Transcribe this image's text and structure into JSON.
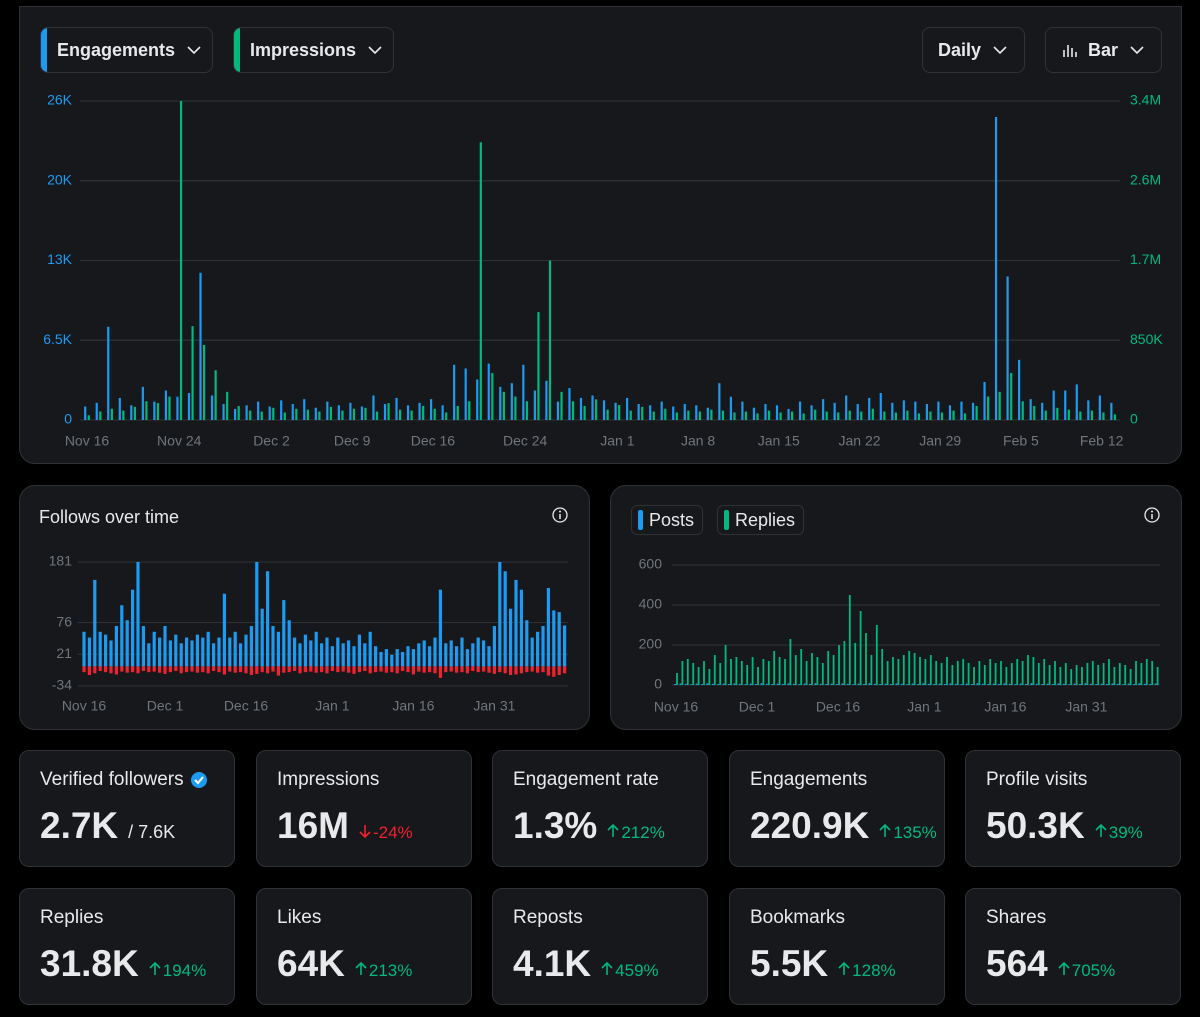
{
  "controls": {
    "interval": "Daily",
    "view": "Bar"
  },
  "chart_data": [
    {
      "type": "bar",
      "categories": [
        "Nov 16",
        null,
        null,
        null,
        null,
        null,
        null,
        null,
        "Nov 24",
        null,
        null,
        null,
        null,
        null,
        null,
        null,
        "Dec 2",
        null,
        null,
        null,
        null,
        null,
        null,
        "Dec 9",
        null,
        null,
        null,
        null,
        null,
        null,
        "Dec 16",
        null,
        null,
        null,
        null,
        null,
        null,
        null,
        "Dec 24",
        null,
        null,
        null,
        null,
        null,
        null,
        null,
        "Jan 1",
        null,
        null,
        null,
        null,
        null,
        null,
        "Jan 8",
        null,
        null,
        null,
        null,
        null,
        null,
        "Jan 15",
        null,
        null,
        null,
        null,
        null,
        null,
        "Jan 22",
        null,
        null,
        null,
        null,
        null,
        null,
        "Jan 29",
        null,
        null,
        null,
        null,
        null,
        null,
        "Feb 5",
        null,
        null,
        null,
        null,
        null,
        null,
        "Feb 12",
        null
      ],
      "series": [
        {
          "name": "Engagements",
          "color": "#1d9bf0",
          "values": [
            1100,
            1400,
            7600,
            1800,
            1200,
            2700,
            1500,
            2400,
            1900,
            2200,
            12000,
            2000,
            1300,
            900,
            1200,
            1500,
            1100,
            1600,
            1300,
            1700,
            1000,
            1500,
            1200,
            1400,
            1100,
            2000,
            1300,
            1800,
            1200,
            1400,
            1700,
            1200,
            4500,
            4200,
            3300,
            4600,
            2700,
            3000,
            4500,
            2400,
            3200,
            1500,
            2600,
            1800,
            2000,
            1600,
            1400,
            1800,
            1300,
            1200,
            1500,
            1100,
            1300,
            1200,
            1000,
            3000,
            1900,
            1500,
            1000,
            1300,
            1200,
            900,
            1500,
            1200,
            1700,
            1400,
            2000,
            1300,
            1800,
            2200,
            1400,
            1600,
            1500,
            1300,
            1500,
            1200,
            1500,
            1400,
            3100,
            24700,
            11700,
            4900,
            1700,
            1400,
            2400,
            2400,
            2900,
            1600,
            2000,
            1400
          ]
        },
        {
          "name": "Impressions",
          "color": "#00ba7c",
          "axis": "y2",
          "values": [
            50000,
            90000,
            120000,
            100000,
            140000,
            200000,
            180000,
            250000,
            3400000,
            1000000,
            800000,
            530000,
            300000,
            150000,
            100000,
            90000,
            130000,
            80000,
            120000,
            110000,
            90000,
            140000,
            100000,
            120000,
            130000,
            90000,
            180000,
            110000,
            100000,
            150000,
            120000,
            80000,
            150000,
            200000,
            2960000,
            500000,
            300000,
            250000,
            200000,
            1150000,
            1700000,
            300000,
            200000,
            150000,
            220000,
            110000,
            160000,
            100000,
            140000,
            90000,
            120000,
            80000,
            100000,
            90000,
            110000,
            100000,
            80000,
            90000,
            70000,
            100000,
            80000,
            90000,
            70000,
            110000,
            90000,
            80000,
            100000,
            90000,
            120000,
            90000,
            80000,
            100000,
            70000,
            90000,
            80000,
            100000,
            70000,
            150000,
            250000,
            300000,
            500000,
            200000,
            150000,
            100000,
            130000,
            110000,
            90000,
            100000,
            80000,
            60000
          ]
        }
      ],
      "ylim": [
        0,
        26000
      ],
      "yticks": [
        0,
        {
          "value": 6500,
          "label": "6.5K"
        },
        {
          "value": 13000,
          "label": "13K"
        },
        {
          "value": 19500,
          "label": "20K"
        },
        {
          "value": 26000,
          "label": "26K"
        }
      ],
      "y2lim": [
        0,
        3400000
      ],
      "y2ticks": [
        0,
        {
          "value": 850000,
          "label": "850K"
        },
        {
          "value": 1700000,
          "label": "1.7M"
        },
        {
          "value": 2550000,
          "label": "2.6M"
        },
        {
          "value": 3400000,
          "label": "3.4M"
        }
      ],
      "grid": true
    },
    {
      "type": "bar",
      "title": "Follows over time",
      "categories": [
        "Nov 16",
        null,
        null,
        null,
        null,
        null,
        null,
        null,
        null,
        null,
        null,
        null,
        null,
        null,
        null,
        "Dec 1",
        null,
        null,
        null,
        null,
        null,
        null,
        null,
        null,
        null,
        null,
        null,
        null,
        null,
        null,
        "Dec 16",
        null,
        null,
        null,
        null,
        null,
        null,
        null,
        null,
        null,
        null,
        null,
        null,
        null,
        null,
        null,
        "Jan 1",
        null,
        null,
        null,
        null,
        null,
        null,
        null,
        null,
        null,
        null,
        null,
        null,
        null,
        null,
        "Jan 16",
        null,
        null,
        null,
        null,
        null,
        null,
        null,
        null,
        null,
        null,
        null,
        null,
        null,
        null,
        "Jan 31",
        null,
        null,
        null,
        null,
        null,
        null,
        null,
        null,
        null,
        null,
        null,
        null,
        null
      ],
      "series": [
        {
          "color": "#1d9bf0",
          "values": [
            60,
            50,
            150,
            60,
            55,
            45,
            70,
            106,
            80,
            133,
            181,
            70,
            40,
            60,
            50,
            70,
            45,
            55,
            40,
            50,
            45,
            55,
            50,
            60,
            40,
            50,
            126,
            50,
            60,
            40,
            55,
            70,
            181,
            100,
            165,
            70,
            60,
            115,
            80,
            50,
            40,
            55,
            45,
            60,
            40,
            50,
            35,
            50,
            40,
            45,
            35,
            55,
            40,
            60,
            35,
            25,
            30,
            20,
            30,
            25,
            35,
            30,
            40,
            45,
            35,
            50,
            133,
            40,
            45,
            35,
            50,
            30,
            40,
            50,
            45,
            35,
            70,
            181,
            165,
            100,
            150,
            133,
            80,
            50,
            60,
            70,
            136,
            97,
            94,
            71
          ]
        },
        {
          "color": "#f4212e",
          "values": [
            -10,
            -15,
            -12,
            -8,
            -10,
            -12,
            -14,
            -9,
            -11,
            -10,
            -12,
            -8,
            -10,
            -9,
            -11,
            -13,
            -10,
            -8,
            -12,
            -10,
            -9,
            -11,
            -10,
            -12,
            -8,
            -10,
            -14,
            -9,
            -11,
            -10,
            -12,
            -15,
            -13,
            -10,
            -12,
            -9,
            -16,
            -11,
            -10,
            -8,
            -12,
            -10,
            -9,
            -11,
            -10,
            -12,
            -8,
            -10,
            -9,
            -11,
            -13,
            -10,
            -8,
            -12,
            -10,
            -9,
            -11,
            -10,
            -12,
            -8,
            -10,
            -14,
            -9,
            -11,
            -10,
            -12,
            -20,
            -10,
            -9,
            -11,
            -10,
            -12,
            -8,
            -10,
            -9,
            -11,
            -13,
            -10,
            -12,
            -15,
            -14,
            -12,
            -10,
            -9,
            -11,
            -10,
            -16,
            -18,
            -15,
            -12
          ]
        }
      ],
      "ylim": [
        -34,
        181
      ],
      "yticks": [
        -34,
        21,
        76,
        181
      ],
      "grid": true,
      "stacked": true
    },
    {
      "type": "bar",
      "categories": [
        "Nov 16",
        null,
        null,
        null,
        null,
        null,
        null,
        null,
        null,
        null,
        null,
        null,
        null,
        null,
        null,
        "Dec 1",
        null,
        null,
        null,
        null,
        null,
        null,
        null,
        null,
        null,
        null,
        null,
        null,
        null,
        null,
        "Dec 16",
        null,
        null,
        null,
        null,
        null,
        null,
        null,
        null,
        null,
        null,
        null,
        null,
        null,
        null,
        null,
        "Jan 1",
        null,
        null,
        null,
        null,
        null,
        null,
        null,
        null,
        null,
        null,
        null,
        null,
        null,
        null,
        "Jan 16",
        null,
        null,
        null,
        null,
        null,
        null,
        null,
        null,
        null,
        null,
        null,
        null,
        null,
        null,
        "Jan 31",
        null,
        null,
        null,
        null,
        null,
        null,
        null,
        null,
        null,
        null,
        null,
        null,
        null
      ],
      "series": [
        {
          "name": "Posts",
          "color": "#1d9bf0",
          "values": [
            5,
            8,
            6,
            4,
            7,
            5,
            9,
            6,
            5,
            7,
            5,
            8,
            6,
            4,
            7,
            5,
            9,
            6,
            5,
            7,
            5,
            8,
            6,
            4,
            7,
            5,
            9,
            6,
            5,
            7,
            5,
            8,
            6,
            4,
            7,
            5,
            9,
            6,
            5,
            7,
            5,
            8,
            6,
            4,
            7,
            5,
            9,
            6,
            5,
            7,
            5,
            8,
            6,
            4,
            7,
            5,
            9,
            6,
            5,
            7,
            5,
            8,
            6,
            4,
            7,
            5,
            9,
            6,
            5,
            7,
            5,
            8,
            6,
            4,
            7,
            5,
            9,
            6,
            5,
            7,
            5,
            8,
            6,
            4,
            7,
            5,
            9,
            6,
            5,
            7
          ]
        },
        {
          "name": "Replies",
          "color": "#00ba7c",
          "values": [
            60,
            120,
            130,
            110,
            90,
            120,
            80,
            150,
            110,
            200,
            130,
            140,
            120,
            100,
            140,
            90,
            130,
            120,
            170,
            140,
            130,
            230,
            150,
            180,
            120,
            160,
            140,
            110,
            170,
            150,
            200,
            220,
            450,
            210,
            370,
            260,
            150,
            300,
            180,
            120,
            140,
            130,
            150,
            170,
            160,
            140,
            130,
            150,
            120,
            110,
            140,
            100,
            120,
            130,
            110,
            90,
            120,
            100,
            130,
            110,
            120,
            90,
            110,
            130,
            120,
            150,
            140,
            110,
            130,
            100,
            120,
            90,
            110,
            80,
            100,
            90,
            110,
            120,
            100,
            110,
            130,
            90,
            110,
            100,
            80,
            120,
            110,
            130,
            120,
            90
          ]
        }
      ],
      "ylim": [
        0,
        600
      ],
      "yticks": [
        0,
        200,
        400,
        600
      ],
      "grid": true
    }
  ],
  "stats": [
    {
      "label": "Verified followers",
      "verified": true,
      "value": "2.7K",
      "total": "/ 7.6K"
    },
    {
      "label": "Impressions",
      "value": "16M",
      "change": "-24%",
      "trend": "down"
    },
    {
      "label": "Engagement rate",
      "value": "1.3%",
      "change": "212%",
      "trend": "up"
    },
    {
      "label": "Engagements",
      "value": "220.9K",
      "change": "135%",
      "trend": "up"
    },
    {
      "label": "Profile visits",
      "value": "50.3K",
      "change": "39%",
      "trend": "up"
    },
    {
      "label": "Replies",
      "value": "31.8K",
      "change": "194%",
      "trend": "up"
    },
    {
      "label": "Likes",
      "value": "64K",
      "change": "213%",
      "trend": "up"
    },
    {
      "label": "Reposts",
      "value": "4.1K",
      "change": "459%",
      "trend": "up"
    },
    {
      "label": "Bookmarks",
      "value": "5.5K",
      "change": "128%",
      "trend": "up"
    },
    {
      "label": "Shares",
      "value": "564",
      "change": "705%",
      "trend": "up"
    }
  ]
}
